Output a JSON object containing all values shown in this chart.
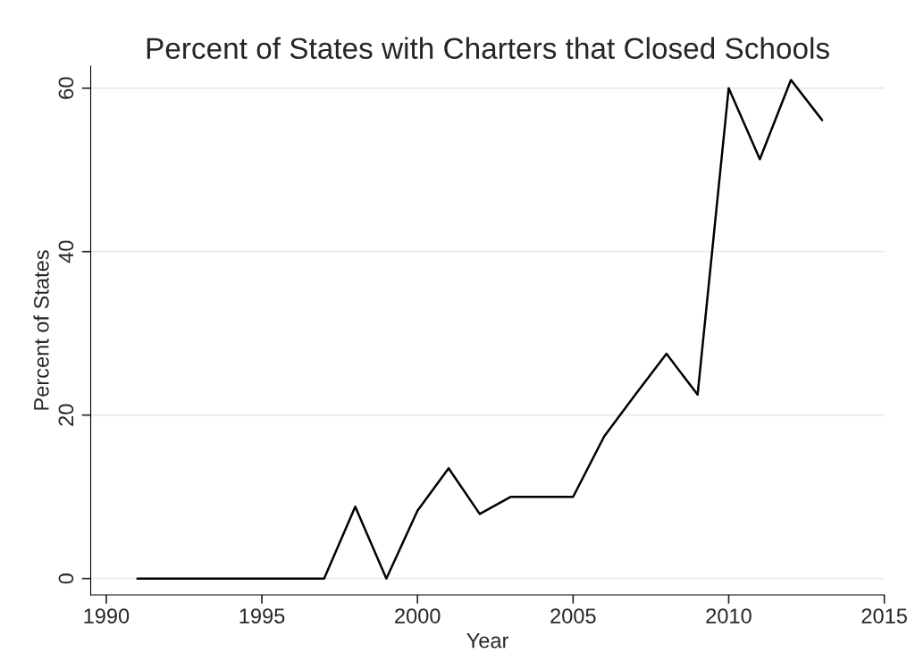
{
  "chart_data": {
    "type": "line",
    "title": "Percent of States with Charters that Closed Schools",
    "xlabel": "Year",
    "ylabel": "Percent of States",
    "x": [
      1991,
      1992,
      1993,
      1994,
      1995,
      1996,
      1997,
      1998,
      1999,
      2000,
      2001,
      2002,
      2003,
      2004,
      2005,
      2006,
      2007,
      2008,
      2009,
      2010,
      2011,
      2012,
      2013
    ],
    "series": [
      {
        "color": "#000000",
        "values": [
          0,
          0,
          0,
          0,
          0,
          0,
          0,
          8.8,
          0,
          8.3,
          13.5,
          7.9,
          10,
          10,
          10,
          17.4,
          22.5,
          27.5,
          22.5,
          60,
          51.3,
          61,
          56.1
        ]
      }
    ],
    "xlim": [
      1989.5,
      2015
    ],
    "xticks": [
      1990,
      1995,
      2000,
      2005,
      2010,
      2015
    ],
    "ylim": [
      -2,
      62.7
    ],
    "yticks": [
      0,
      20,
      40,
      60
    ],
    "grid": "y",
    "legend": false
  }
}
